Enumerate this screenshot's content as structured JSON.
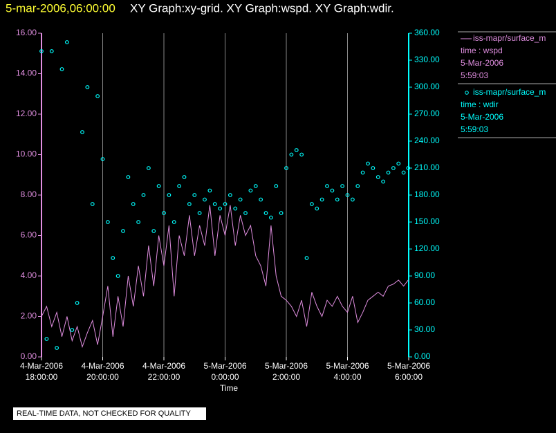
{
  "chart_data": {
    "type": "line",
    "title_time": "5-mar-2006,06:00:00",
    "title": "XY Graph:xy-grid.  XY Graph:wspd.  XY Graph:wdir.",
    "x_label": "Time",
    "footer": "REAL-TIME DATA, NOT CHECKED FOR QUALITY",
    "xgrid": true,
    "xlim": [
      "2006-03-04T18:00:00",
      "2006-03-05T06:00:00"
    ],
    "xticks": [
      {
        "value": "2006-03-04T18:00:00",
        "label": [
          "4-Mar-2006",
          "18:00:00"
        ]
      },
      {
        "value": "2006-03-04T20:00:00",
        "label": [
          "4-Mar-2006",
          "20:00:00"
        ]
      },
      {
        "value": "2006-03-04T22:00:00",
        "label": [
          "4-Mar-2006",
          "22:00:00"
        ]
      },
      {
        "value": "2006-03-05T00:00:00",
        "label": [
          "5-Mar-2006",
          "0:00:00"
        ]
      },
      {
        "value": "2006-03-05T02:00:00",
        "label": [
          "5-Mar-2006",
          "2:00:00"
        ]
      },
      {
        "value": "2006-03-05T04:00:00",
        "label": [
          "5-Mar-2006",
          "4:00:00"
        ]
      },
      {
        "value": "2006-03-05T06:00:00",
        "label": [
          "5-Mar-2006",
          "6:00:00"
        ]
      }
    ],
    "ylim": [
      0,
      16
    ],
    "yticks": [
      {
        "value": 0,
        "label": "0.00"
      },
      {
        "value": 2,
        "label": "2.00"
      },
      {
        "value": 4,
        "label": "4.00"
      },
      {
        "value": 6,
        "label": "6.00"
      },
      {
        "value": 8,
        "label": "8.00"
      },
      {
        "value": 10,
        "label": "10.00"
      },
      {
        "value": 12,
        "label": "12.00"
      },
      {
        "value": 14,
        "label": "14.00"
      },
      {
        "value": 16,
        "label": "16.00"
      }
    ],
    "y2lim": [
      0,
      360
    ],
    "y2ticks": [
      {
        "value": 0,
        "label": "0.00"
      },
      {
        "value": 30,
        "label": "30.00"
      },
      {
        "value": 60,
        "label": "60.00"
      },
      {
        "value": 90,
        "label": "90.00"
      },
      {
        "value": 120,
        "label": "120.00"
      },
      {
        "value": 150,
        "label": "150.00"
      },
      {
        "value": 180,
        "label": "180.00"
      },
      {
        "value": 210,
        "label": "210.00"
      },
      {
        "value": 240,
        "label": "240.00"
      },
      {
        "value": 270,
        "label": "270.00"
      },
      {
        "value": 300,
        "label": "300.00"
      },
      {
        "value": 330,
        "label": "330.00"
      },
      {
        "value": 360,
        "label": "360.00"
      }
    ],
    "y_color": "#e08ee0",
    "y2_color": "#00ffff",
    "series": [
      {
        "name": "iss-mapr/surface_m",
        "style": "line",
        "color": "#e08ee0",
        "legend_lines": [
          "time : wspd",
          "5-Mar-2006",
          "5:59:03"
        ],
        "x": [
          "2006-03-04T18:00:00",
          "2006-03-04T18:10:00",
          "2006-03-04T18:20:00",
          "2006-03-04T18:30:00",
          "2006-03-04T18:40:00",
          "2006-03-04T18:50:00",
          "2006-03-04T19:00:00",
          "2006-03-04T19:10:00",
          "2006-03-04T19:20:00",
          "2006-03-04T19:30:00",
          "2006-03-04T19:40:00",
          "2006-03-04T19:50:00",
          "2006-03-04T20:00:00",
          "2006-03-04T20:10:00",
          "2006-03-04T20:20:00",
          "2006-03-04T20:30:00",
          "2006-03-04T20:40:00",
          "2006-03-04T20:50:00",
          "2006-03-04T21:00:00",
          "2006-03-04T21:10:00",
          "2006-03-04T21:20:00",
          "2006-03-04T21:30:00",
          "2006-03-04T21:40:00",
          "2006-03-04T21:50:00",
          "2006-03-04T22:00:00",
          "2006-03-04T22:10:00",
          "2006-03-04T22:20:00",
          "2006-03-04T22:30:00",
          "2006-03-04T22:40:00",
          "2006-03-04T22:50:00",
          "2006-03-04T23:00:00",
          "2006-03-04T23:10:00",
          "2006-03-04T23:20:00",
          "2006-03-04T23:30:00",
          "2006-03-04T23:40:00",
          "2006-03-04T23:50:00",
          "2006-03-05T00:00:00",
          "2006-03-05T00:10:00",
          "2006-03-05T00:20:00",
          "2006-03-05T00:30:00",
          "2006-03-05T00:40:00",
          "2006-03-05T00:50:00",
          "2006-03-05T01:00:00",
          "2006-03-05T01:10:00",
          "2006-03-05T01:20:00",
          "2006-03-05T01:30:00",
          "2006-03-05T01:40:00",
          "2006-03-05T01:50:00",
          "2006-03-05T02:00:00",
          "2006-03-05T02:10:00",
          "2006-03-05T02:20:00",
          "2006-03-05T02:30:00",
          "2006-03-05T02:40:00",
          "2006-03-05T02:50:00",
          "2006-03-05T03:00:00",
          "2006-03-05T03:10:00",
          "2006-03-05T03:20:00",
          "2006-03-05T03:30:00",
          "2006-03-05T03:40:00",
          "2006-03-05T03:50:00",
          "2006-03-05T04:00:00",
          "2006-03-05T04:10:00",
          "2006-03-05T04:20:00",
          "2006-03-05T04:30:00",
          "2006-03-05T04:40:00",
          "2006-03-05T04:50:00",
          "2006-03-05T05:00:00",
          "2006-03-05T05:10:00",
          "2006-03-05T05:20:00",
          "2006-03-05T05:30:00",
          "2006-03-05T05:40:00",
          "2006-03-05T05:50:00",
          "2006-03-05T05:59:03"
        ],
        "values": [
          2.0,
          2.5,
          1.5,
          2.2,
          1.0,
          2.0,
          0.8,
          1.5,
          0.5,
          1.2,
          1.8,
          0.6,
          2.0,
          3.5,
          1.0,
          3.0,
          1.5,
          4.0,
          2.5,
          4.5,
          3.0,
          5.5,
          3.5,
          6.0,
          4.5,
          6.5,
          3.0,
          6.0,
          5.0,
          7.0,
          5.0,
          6.5,
          5.5,
          7.5,
          5.0,
          7.0,
          6.0,
          7.5,
          5.5,
          7.0,
          6.0,
          6.5,
          5.0,
          4.5,
          3.5,
          6.5,
          4.0,
          3.0,
          2.8,
          2.5,
          2.0,
          2.8,
          1.5,
          3.2,
          2.5,
          2.0,
          2.8,
          2.5,
          3.0,
          2.5,
          2.2,
          3.0,
          1.7,
          2.2,
          2.8,
          3.0,
          3.2,
          3.0,
          3.5,
          3.6,
          3.8,
          3.5,
          3.8
        ]
      },
      {
        "name": "iss-mapr/surface_m",
        "style": "circle",
        "color": "#00ffff",
        "axis": "y2",
        "legend_lines": [
          "time : wdir",
          "5-Mar-2006",
          "5:59:03"
        ],
        "x": [
          "2006-03-04T18:00:00",
          "2006-03-04T18:10:00",
          "2006-03-04T18:20:00",
          "2006-03-04T18:30:00",
          "2006-03-04T18:40:00",
          "2006-03-04T18:50:00",
          "2006-03-04T19:00:00",
          "2006-03-04T19:10:00",
          "2006-03-04T19:20:00",
          "2006-03-04T19:30:00",
          "2006-03-04T19:40:00",
          "2006-03-04T19:50:00",
          "2006-03-04T20:00:00",
          "2006-03-04T20:10:00",
          "2006-03-04T20:20:00",
          "2006-03-04T20:30:00",
          "2006-03-04T20:40:00",
          "2006-03-04T20:50:00",
          "2006-03-04T21:00:00",
          "2006-03-04T21:10:00",
          "2006-03-04T21:20:00",
          "2006-03-04T21:30:00",
          "2006-03-04T21:40:00",
          "2006-03-04T21:50:00",
          "2006-03-04T22:00:00",
          "2006-03-04T22:10:00",
          "2006-03-04T22:20:00",
          "2006-03-04T22:30:00",
          "2006-03-04T22:40:00",
          "2006-03-04T22:50:00",
          "2006-03-04T23:00:00",
          "2006-03-04T23:10:00",
          "2006-03-04T23:20:00",
          "2006-03-04T23:30:00",
          "2006-03-04T23:40:00",
          "2006-03-04T23:50:00",
          "2006-03-05T00:00:00",
          "2006-03-05T00:10:00",
          "2006-03-05T00:20:00",
          "2006-03-05T00:30:00",
          "2006-03-05T00:40:00",
          "2006-03-05T00:50:00",
          "2006-03-05T01:00:00",
          "2006-03-05T01:10:00",
          "2006-03-05T01:20:00",
          "2006-03-05T01:30:00",
          "2006-03-05T01:40:00",
          "2006-03-05T01:50:00",
          "2006-03-05T02:00:00",
          "2006-03-05T02:10:00",
          "2006-03-05T02:20:00",
          "2006-03-05T02:30:00",
          "2006-03-05T02:40:00",
          "2006-03-05T02:50:00",
          "2006-03-05T03:00:00",
          "2006-03-05T03:10:00",
          "2006-03-05T03:20:00",
          "2006-03-05T03:30:00",
          "2006-03-05T03:40:00",
          "2006-03-05T03:50:00",
          "2006-03-05T04:00:00",
          "2006-03-05T04:10:00",
          "2006-03-05T04:20:00",
          "2006-03-05T04:30:00",
          "2006-03-05T04:40:00",
          "2006-03-05T04:50:00",
          "2006-03-05T05:00:00",
          "2006-03-05T05:10:00",
          "2006-03-05T05:20:00",
          "2006-03-05T05:30:00",
          "2006-03-05T05:40:00",
          "2006-03-05T05:50:00",
          "2006-03-05T05:59:03"
        ],
        "values": [
          340,
          20,
          340,
          10,
          320,
          350,
          30,
          60,
          250,
          300,
          170,
          290,
          220,
          150,
          110,
          90,
          140,
          200,
          170,
          150,
          180,
          210,
          140,
          190,
          160,
          180,
          150,
          190,
          200,
          170,
          180,
          160,
          175,
          185,
          170,
          165,
          170,
          180,
          165,
          175,
          160,
          185,
          190,
          175,
          160,
          155,
          190,
          160,
          210,
          225,
          230,
          225,
          110,
          170,
          165,
          175,
          190,
          185,
          175,
          190,
          180,
          175,
          190,
          205,
          215,
          210,
          200,
          195,
          205,
          210,
          215,
          205,
          210
        ]
      }
    ]
  }
}
